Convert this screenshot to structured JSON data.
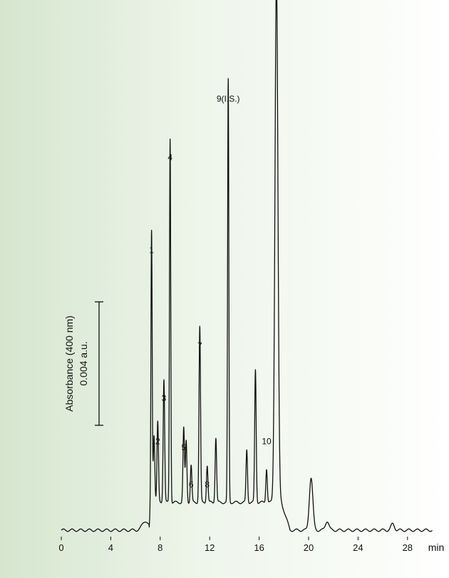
{
  "chart_data": {
    "type": "line",
    "title": "",
    "xlabel": "min",
    "ylabel": "",
    "xlim": [
      0,
      30
    ],
    "x_ticks": [
      "0",
      "4",
      "8",
      "12",
      "16",
      "20",
      "24",
      "28"
    ],
    "x_unit": "min",
    "grid": false,
    "line_color": "#111111",
    "scale_bar": {
      "line1": "Absorbance (400 nm)",
      "line2": "0.004 a.u.",
      "value": 0.004
    },
    "baseline_absorbance": 0.0,
    "peaks": [
      {
        "label": "1",
        "rt": 7.3,
        "height": 0.0088
      },
      {
        "label": "2",
        "rt": 7.8,
        "height": 0.0026
      },
      {
        "label": "3",
        "rt": 8.3,
        "height": 0.004
      },
      {
        "label": "4",
        "rt": 8.8,
        "height": 0.0118
      },
      {
        "label": "5",
        "rt": 9.9,
        "height": 0.0024
      },
      {
        "label": "6",
        "rt": 10.5,
        "height": 0.0012
      },
      {
        "label": "7",
        "rt": 11.2,
        "height": 0.0057
      },
      {
        "label": "8",
        "rt": 11.8,
        "height": 0.0012
      },
      {
        "label": "9(I.S.)",
        "rt": 13.5,
        "height": 0.0137
      },
      {
        "label": "10",
        "rt": 16.6,
        "height": 0.0011
      }
    ],
    "unlabeled_peaks": [
      {
        "rt": 7.5,
        "height": 0.0022
      },
      {
        "rt": 10.1,
        "height": 0.002
      },
      {
        "rt": 12.5,
        "height": 0.0021
      },
      {
        "rt": 15.0,
        "height": 0.0017
      },
      {
        "rt": 15.7,
        "height": 0.0043
      },
      {
        "rt": 17.4,
        "height": 0.017
      },
      {
        "rt": 20.2,
        "height": 0.0017
      },
      {
        "rt": 21.5,
        "height": 0.0003
      },
      {
        "rt": 26.8,
        "height": 0.0002
      }
    ]
  }
}
